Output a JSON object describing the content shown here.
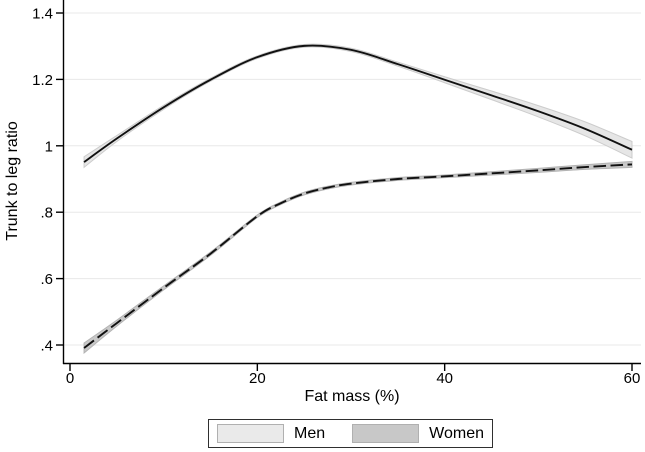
{
  "chart_data": {
    "type": "line",
    "title": "",
    "xlabel": "Fat mass (%)",
    "ylabel": "Trunk to leg ratio",
    "x_axis": {
      "ticks": [
        0,
        20,
        40,
        60
      ],
      "tick_labels": [
        "0",
        "20",
        "40",
        "60"
      ],
      "range": [
        -0.7,
        61.7
      ]
    },
    "y_axis": {
      "ticks": [
        0.4,
        0.6,
        0.8,
        1,
        1.2,
        1.4
      ],
      "tick_labels": [
        ".4",
        ".6",
        ".8",
        "1",
        "1.2",
        "1.4"
      ],
      "range": [
        0.345,
        1.44
      ]
    },
    "grid": "horizontal gridlines at each y tick",
    "legend": {
      "position": "bottom-center framed box",
      "entries": [
        {
          "label": "Men",
          "swatch_color": "#eaeaea"
        },
        {
          "label": "Women",
          "swatch_color": "#c8c8c8"
        }
      ]
    },
    "point_format": "[fat_mass_pct, trunk_to_leg_ratio, ci_half_width]",
    "series": [
      {
        "name": "Men",
        "line_style": "solid",
        "line_color": "#111111",
        "band_color": "#e6e6e6",
        "band_edge_color": "#cccccc",
        "points": [
          [
            1.5,
            0.951,
            0.016
          ],
          [
            5,
            1.022,
            0.009
          ],
          [
            10,
            1.116,
            0.006
          ],
          [
            15,
            1.199,
            0.0045
          ],
          [
            20,
            1.267,
            0.004
          ],
          [
            25,
            1.301,
            0.004
          ],
          [
            30,
            1.289,
            0.005
          ],
          [
            35,
            1.246,
            0.006
          ],
          [
            40,
            1.199,
            0.009
          ],
          [
            45,
            1.152,
            0.013
          ],
          [
            50,
            1.104,
            0.017
          ],
          [
            55,
            1.051,
            0.021
          ],
          [
            60,
            0.988,
            0.025
          ]
        ]
      },
      {
        "name": "Women",
        "line_style": "dash",
        "line_color": "#111111",
        "band_color": "#c8c8c8",
        "band_edge_color": "#b3b3b3",
        "points": [
          [
            1.5,
            0.391,
            0.015
          ],
          [
            5,
            0.466,
            0.009
          ],
          [
            10,
            0.572,
            0.006
          ],
          [
            15,
            0.675,
            0.005
          ],
          [
            20,
            0.788,
            0.004
          ],
          [
            22.5,
            0.827,
            0.004
          ],
          [
            25,
            0.856,
            0.004
          ],
          [
            27.5,
            0.874,
            0.004
          ],
          [
            30,
            0.886,
            0.004
          ],
          [
            35,
            0.9,
            0.004
          ],
          [
            40,
            0.908,
            0.004
          ],
          [
            45,
            0.917,
            0.005
          ],
          [
            50,
            0.926,
            0.006
          ],
          [
            55,
            0.936,
            0.007
          ],
          [
            60,
            0.944,
            0.009
          ]
        ]
      }
    ],
    "colors": {
      "background": "#ffffff",
      "axis": "#000000",
      "gridline": "#e8e8e8",
      "text": "#000000"
    }
  }
}
